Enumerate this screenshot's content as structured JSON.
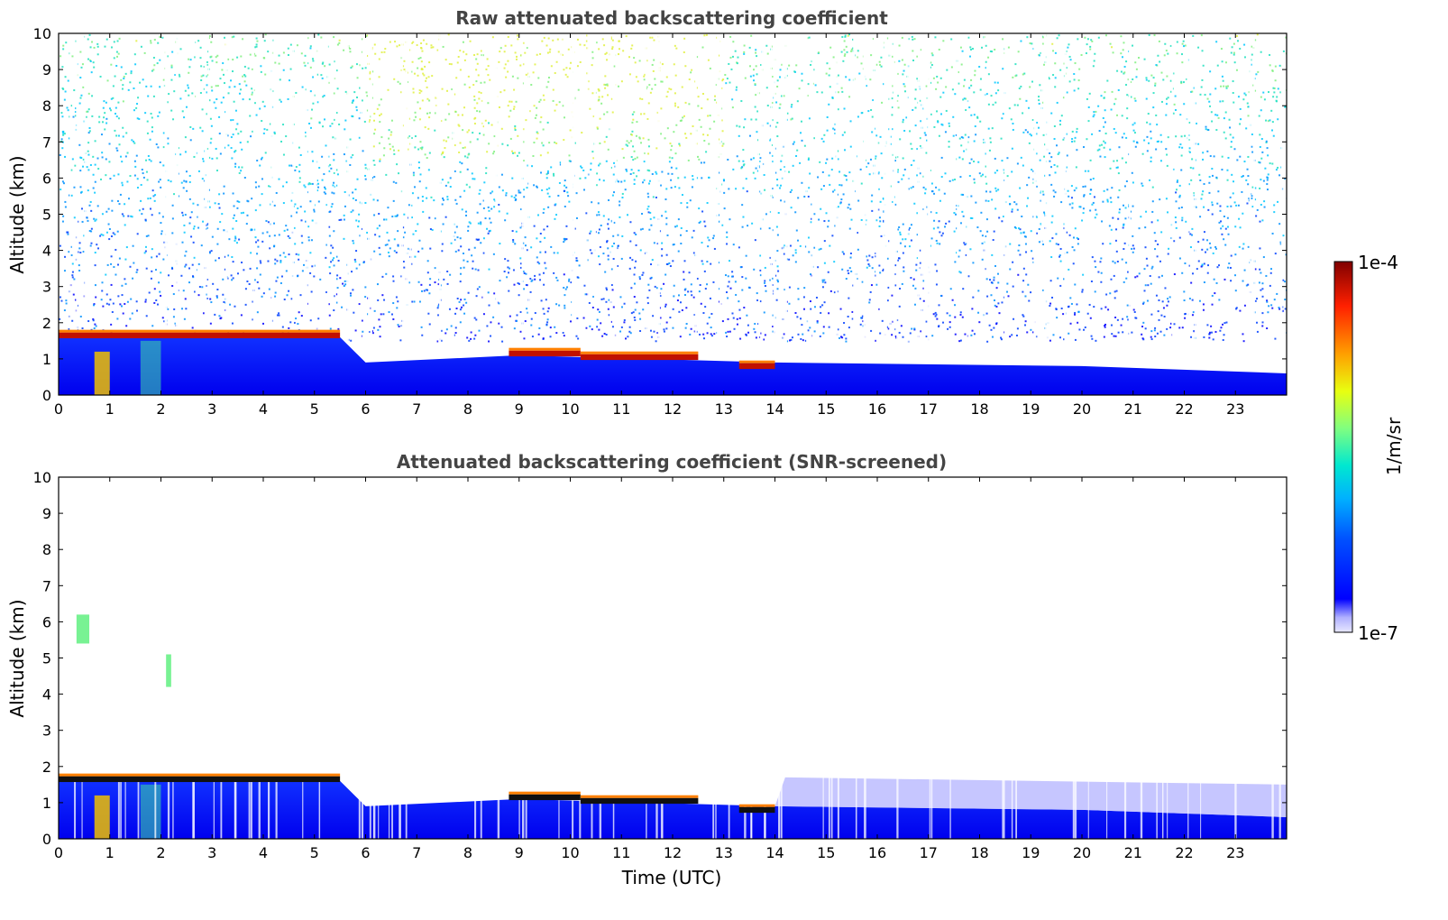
{
  "chart_data": [
    {
      "type": "heatmap",
      "title": "Raw attenuated backscattering coefficient",
      "xlabel": "",
      "ylabel": "Altitude (km)",
      "xlim": [
        0,
        24
      ],
      "ylim": [
        0,
        10
      ],
      "x_ticks": [
        "0",
        "1",
        "2",
        "3",
        "4",
        "5",
        "6",
        "7",
        "8",
        "9",
        "10",
        "11",
        "12",
        "13",
        "14",
        "15",
        "16",
        "17",
        "18",
        "19",
        "20",
        "21",
        "22",
        "23"
      ],
      "y_ticks": [
        "0",
        "1",
        "2",
        "3",
        "4",
        "5",
        "6",
        "7",
        "8",
        "9",
        "10"
      ],
      "cloud_layers": [
        {
          "t_start": 0,
          "t_end": 5.5,
          "alt_km": 1.65
        },
        {
          "t_start": 8.8,
          "t_end": 10.2,
          "alt_km": 1.15
        },
        {
          "t_start": 10.2,
          "t_end": 12.5,
          "alt_km": 1.05
        },
        {
          "t_start": 13.3,
          "t_end": 14.0,
          "alt_km": 0.8
        }
      ],
      "boundary_layer_top_km": [
        {
          "t": 0,
          "alt": 1.6
        },
        {
          "t": 5.5,
          "alt": 1.6
        },
        {
          "t": 6,
          "alt": 0.9
        },
        {
          "t": 9,
          "alt": 1.1
        },
        {
          "t": 14,
          "alt": 0.9
        },
        {
          "t": 20,
          "alt": 0.8
        },
        {
          "t": 24,
          "alt": 0.6
        }
      ]
    },
    {
      "type": "heatmap",
      "title": "Attenuated backscattering coefficient (SNR-screened)",
      "xlabel": "Time (UTC)",
      "ylabel": "Altitude (km)",
      "xlim": [
        0,
        24
      ],
      "ylim": [
        0,
        10
      ],
      "x_ticks": [
        "0",
        "1",
        "2",
        "3",
        "4",
        "5",
        "6",
        "7",
        "8",
        "9",
        "10",
        "11",
        "12",
        "13",
        "14",
        "15",
        "16",
        "17",
        "18",
        "19",
        "20",
        "21",
        "22",
        "23"
      ],
      "y_ticks": [
        "0",
        "1",
        "2",
        "3",
        "4",
        "5",
        "6",
        "7",
        "8",
        "9",
        "10"
      ],
      "cloud_layers": [
        {
          "t_start": 0,
          "t_end": 5.5,
          "alt_km": 1.65
        },
        {
          "t_start": 8.8,
          "t_end": 10.2,
          "alt_km": 1.15
        },
        {
          "t_start": 10.2,
          "t_end": 12.5,
          "alt_km": 1.05
        },
        {
          "t_start": 13.3,
          "t_end": 14.0,
          "alt_km": 0.8
        }
      ],
      "elevated_features": [
        {
          "t_start": 0.35,
          "t_end": 0.6,
          "alt_bottom": 5.4,
          "alt_top": 6.2
        },
        {
          "t_start": 2.1,
          "t_end": 2.2,
          "alt_bottom": 4.2,
          "alt_top": 5.1
        }
      ]
    }
  ],
  "colorbar": {
    "label": "1/m/sr",
    "max_label": "1e-4",
    "min_label": "1e-7",
    "colormap": "jet"
  }
}
